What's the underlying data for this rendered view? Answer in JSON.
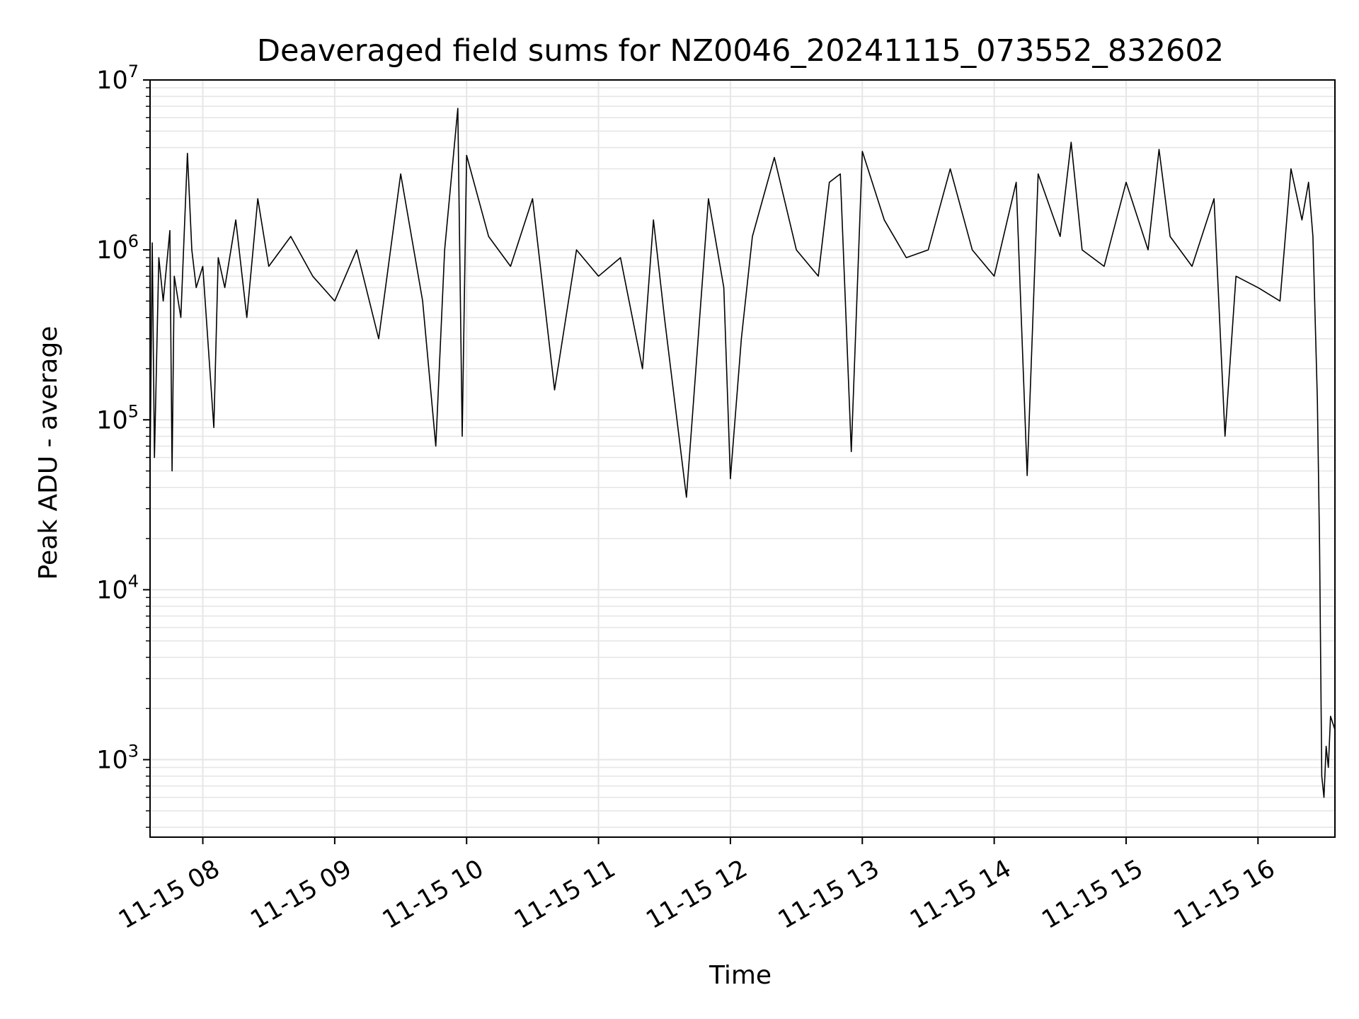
{
  "chart_data": {
    "type": "line",
    "title": "Deaveraged field sums for NZ0046_20241115_073552_832602",
    "xlabel": "Time",
    "ylabel": "Peak ADU - average",
    "yscale": "log",
    "ylim": [
      350,
      10000000
    ],
    "xlim": [
      "2024-11-15 07:36",
      "2024-11-15 16:35"
    ],
    "x_ticks": [
      {
        "value": "2024-11-15 08:00",
        "label": "11-15 08"
      },
      {
        "value": "2024-11-15 09:00",
        "label": "11-15 09"
      },
      {
        "value": "2024-11-15 10:00",
        "label": "11-15 10"
      },
      {
        "value": "2024-11-15 11:00",
        "label": "11-15 11"
      },
      {
        "value": "2024-11-15 12:00",
        "label": "11-15 12"
      },
      {
        "value": "2024-11-15 13:00",
        "label": "11-15 13"
      },
      {
        "value": "2024-11-15 14:00",
        "label": "11-15 14"
      },
      {
        "value": "2024-11-15 15:00",
        "label": "11-15 15"
      },
      {
        "value": "2024-11-15 16:00",
        "label": "11-15 16"
      }
    ],
    "y_ticks": [
      {
        "value": 1000,
        "base": "10",
        "exp": "3"
      },
      {
        "value": 10000,
        "base": "10",
        "exp": "4"
      },
      {
        "value": 100000,
        "base": "10",
        "exp": "5"
      },
      {
        "value": 1000000,
        "base": "10",
        "exp": "6"
      },
      {
        "value": 10000000,
        "base": "10",
        "exp": "7"
      }
    ],
    "grid": true,
    "grid_minor": true,
    "line_color": "#000000",
    "grid_color": "#e6e6e6",
    "series": [
      {
        "x": [
          "2024-11-15 07:36",
          "2024-11-15 07:37",
          "2024-11-15 07:38",
          "2024-11-15 07:40",
          "2024-11-15 07:42",
          "2024-11-15 07:45",
          "2024-11-15 07:46",
          "2024-11-15 07:47",
          "2024-11-15 07:50",
          "2024-11-15 07:53",
          "2024-11-15 07:55",
          "2024-11-15 07:57",
          "2024-11-15 08:00",
          "2024-11-15 08:05",
          "2024-11-15 08:07",
          "2024-11-15 08:10",
          "2024-11-15 08:15",
          "2024-11-15 08:20",
          "2024-11-15 08:25",
          "2024-11-15 08:30",
          "2024-11-15 08:40",
          "2024-11-15 08:50",
          "2024-11-15 09:00",
          "2024-11-15 09:10",
          "2024-11-15 09:20",
          "2024-11-15 09:30",
          "2024-11-15 09:40",
          "2024-11-15 09:46",
          "2024-11-15 09:50",
          "2024-11-15 09:56",
          "2024-11-15 09:58",
          "2024-11-15 10:00",
          "2024-11-15 10:10",
          "2024-11-15 10:20",
          "2024-11-15 10:30",
          "2024-11-15 10:40",
          "2024-11-15 10:50",
          "2024-11-15 11:00",
          "2024-11-15 11:10",
          "2024-11-15 11:20",
          "2024-11-15 11:25",
          "2024-11-15 11:30",
          "2024-11-15 11:40",
          "2024-11-15 11:50",
          "2024-11-15 11:57",
          "2024-11-15 12:00",
          "2024-11-15 12:05",
          "2024-11-15 12:10",
          "2024-11-15 12:20",
          "2024-11-15 12:30",
          "2024-11-15 12:40",
          "2024-11-15 12:45",
          "2024-11-15 12:50",
          "2024-11-15 12:55",
          "2024-11-15 13:00",
          "2024-11-15 13:10",
          "2024-11-15 13:20",
          "2024-11-15 13:30",
          "2024-11-15 13:40",
          "2024-11-15 13:50",
          "2024-11-15 14:00",
          "2024-11-15 14:10",
          "2024-11-15 14:15",
          "2024-11-15 14:20",
          "2024-11-15 14:30",
          "2024-11-15 14:35",
          "2024-11-15 14:40",
          "2024-11-15 14:50",
          "2024-11-15 15:00",
          "2024-11-15 15:10",
          "2024-11-15 15:15",
          "2024-11-15 15:20",
          "2024-11-15 15:30",
          "2024-11-15 15:40",
          "2024-11-15 15:45",
          "2024-11-15 15:50",
          "2024-11-15 16:00",
          "2024-11-15 16:10",
          "2024-11-15 16:15",
          "2024-11-15 16:20",
          "2024-11-15 16:23",
          "2024-11-15 16:25",
          "2024-11-15 16:27",
          "2024-11-15 16:28",
          "2024-11-15 16:29",
          "2024-11-15 16:30",
          "2024-11-15 16:31",
          "2024-11-15 16:32",
          "2024-11-15 16:33",
          "2024-11-15 16:35"
        ],
        "y": [
          50000,
          1100000,
          60000,
          900000,
          500000,
          1300000,
          50000,
          700000,
          400000,
          3700000,
          1000000,
          600000,
          800000,
          90000,
          900000,
          600000,
          1500000,
          400000,
          2000000,
          800000,
          1200000,
          700000,
          500000,
          1000000,
          300000,
          2800000,
          500000,
          70000,
          1000000,
          6800000,
          80000,
          3600000,
          1200000,
          800000,
          2000000,
          150000,
          1000000,
          700000,
          900000,
          200000,
          1500000,
          400000,
          35000,
          2000000,
          600000,
          45000,
          300000,
          1200000,
          3500000,
          1000000,
          700000,
          2500000,
          2800000,
          65000,
          3800000,
          1500000,
          900000,
          1000000,
          3000000,
          1000000,
          700000,
          2500000,
          47000,
          2800000,
          1200000,
          4300000,
          1000000,
          800000,
          2500000,
          1000000,
          3900000,
          1200000,
          800000,
          2000000,
          80000,
          700000,
          600000,
          500000,
          3000000,
          1500000,
          2500000,
          1200000,
          130000,
          18000,
          800,
          600,
          1200,
          900,
          1800,
          1500
        ]
      }
    ]
  }
}
